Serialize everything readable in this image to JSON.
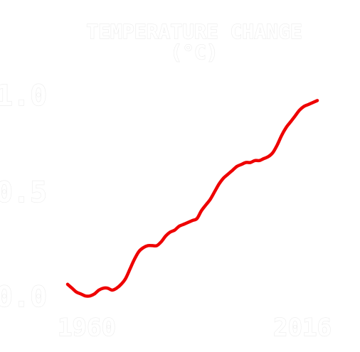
{
  "chart_data": {
    "type": "line",
    "title_line1": "TEMPERATURE CHANGE",
    "title_line2": "(°C)",
    "xlabel": "",
    "ylabel": "",
    "xlim": [
      1960,
      2016
    ],
    "ylim": [
      0.0,
      1.0
    ],
    "x_ticks": [
      "1960",
      "2016"
    ],
    "y_ticks": [
      "1.0",
      "0.5",
      "0.0"
    ],
    "series": [
      {
        "color": "#ee0000",
        "x": [
          1960,
          1961,
          1962,
          1963,
          1964,
          1965,
          1966,
          1967,
          1968,
          1969,
          1970,
          1971,
          1972,
          1973,
          1974,
          1975,
          1976,
          1977,
          1978,
          1979,
          1980,
          1981,
          1982,
          1983,
          1984,
          1985,
          1986,
          1987,
          1988,
          1989,
          1990,
          1991,
          1992,
          1993,
          1994,
          1995,
          1996,
          1997,
          1998,
          1999,
          2000,
          2001,
          2002,
          2003,
          2004,
          2005,
          2006,
          2007,
          2008,
          2009,
          2010,
          2011,
          2012,
          2013,
          2014,
          2015,
          2016
        ],
        "values": [
          0.03,
          0.01,
          -0.01,
          -0.02,
          -0.03,
          -0.03,
          -0.02,
          0.0,
          0.01,
          0.01,
          0.0,
          0.01,
          0.03,
          0.06,
          0.11,
          0.16,
          0.2,
          0.22,
          0.23,
          0.23,
          0.23,
          0.25,
          0.28,
          0.3,
          0.31,
          0.33,
          0.34,
          0.35,
          0.36,
          0.37,
          0.41,
          0.44,
          0.47,
          0.51,
          0.55,
          0.58,
          0.6,
          0.62,
          0.64,
          0.65,
          0.66,
          0.66,
          0.67,
          0.67,
          0.68,
          0.69,
          0.71,
          0.75,
          0.8,
          0.84,
          0.87,
          0.9,
          0.93,
          0.95,
          0.96,
          0.97,
          0.98
        ]
      }
    ]
  }
}
